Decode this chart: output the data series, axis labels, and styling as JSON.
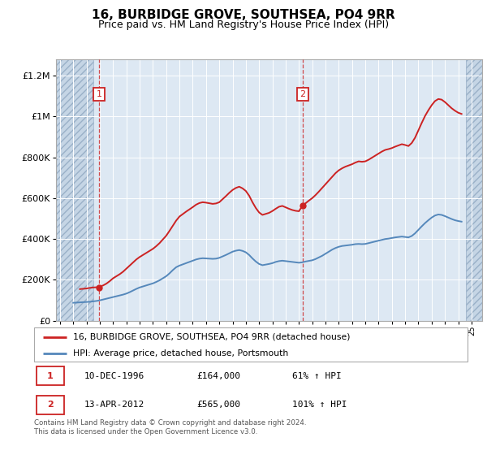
{
  "title": "16, BURBIDGE GROVE, SOUTHSEA, PO4 9RR",
  "subtitle": "Price paid vs. HM Land Registry's House Price Index (HPI)",
  "title_fontsize": 11,
  "subtitle_fontsize": 9,
  "ylabel_ticks": [
    "£0",
    "£200K",
    "£400K",
    "£600K",
    "£800K",
    "£1M",
    "£1.2M"
  ],
  "ytick_vals": [
    0,
    200000,
    400000,
    600000,
    800000,
    1000000,
    1200000
  ],
  "ylim": [
    0,
    1280000
  ],
  "xmin": 1993.7,
  "xmax": 2025.8,
  "hpi_color": "#5588bb",
  "price_color": "#cc2222",
  "annotation_box_color": "#cc2222",
  "bg_color": "#dde8f3",
  "hatch_color": "#c5d5e5",
  "grid_color": "#ffffff",
  "footnote": "Contains HM Land Registry data © Crown copyright and database right 2024.\nThis data is licensed under the Open Government Licence v3.0.",
  "sale1_price": 164000,
  "sale1_year": 1996.94,
  "sale2_price": 565000,
  "sale2_year": 2012.28,
  "legend_line1": "16, BURBIDGE GROVE, SOUTHSEA, PO4 9RR (detached house)",
  "legend_line2": "HPI: Average price, detached house, Portsmouth",
  "table_row1": [
    "1",
    "10-DEC-1996",
    "£164,000",
    "61% ↑ HPI"
  ],
  "table_row2": [
    "2",
    "13-APR-2012",
    "£565,000",
    "101% ↑ HPI"
  ],
  "hatch_left_end": 1996.5,
  "hatch_right_start": 2024.6,
  "hpi_data_years": [
    1995.0,
    1995.25,
    1995.5,
    1995.75,
    1996.0,
    1996.25,
    1996.5,
    1996.75,
    1997.0,
    1997.25,
    1997.5,
    1997.75,
    1998.0,
    1998.25,
    1998.5,
    1998.75,
    1999.0,
    1999.25,
    1999.5,
    1999.75,
    2000.0,
    2000.25,
    2000.5,
    2000.75,
    2001.0,
    2001.25,
    2001.5,
    2001.75,
    2002.0,
    2002.25,
    2002.5,
    2002.75,
    2003.0,
    2003.25,
    2003.5,
    2003.75,
    2004.0,
    2004.25,
    2004.5,
    2004.75,
    2005.0,
    2005.25,
    2005.5,
    2005.75,
    2006.0,
    2006.25,
    2006.5,
    2006.75,
    2007.0,
    2007.25,
    2007.5,
    2007.75,
    2008.0,
    2008.25,
    2008.5,
    2008.75,
    2009.0,
    2009.25,
    2009.5,
    2009.75,
    2010.0,
    2010.25,
    2010.5,
    2010.75,
    2011.0,
    2011.25,
    2011.5,
    2011.75,
    2012.0,
    2012.25,
    2012.5,
    2012.75,
    2013.0,
    2013.25,
    2013.5,
    2013.75,
    2014.0,
    2014.25,
    2014.5,
    2014.75,
    2015.0,
    2015.25,
    2015.5,
    2015.75,
    2016.0,
    2016.25,
    2016.5,
    2016.75,
    2017.0,
    2017.25,
    2017.5,
    2017.75,
    2018.0,
    2018.25,
    2018.5,
    2018.75,
    2019.0,
    2019.25,
    2019.5,
    2019.75,
    2020.0,
    2020.25,
    2020.5,
    2020.75,
    2021.0,
    2021.25,
    2021.5,
    2021.75,
    2022.0,
    2022.25,
    2022.5,
    2022.75,
    2023.0,
    2023.25,
    2023.5,
    2023.75,
    2024.0,
    2024.25
  ],
  "hpi_data_values": [
    88000,
    89000,
    90000,
    91000,
    92000,
    93000,
    95000,
    97000,
    100000,
    104000,
    108000,
    112000,
    116000,
    120000,
    124000,
    128000,
    133000,
    140000,
    148000,
    156000,
    163000,
    168000,
    173000,
    178000,
    183000,
    190000,
    198000,
    208000,
    218000,
    232000,
    248000,
    262000,
    270000,
    276000,
    282000,
    288000,
    294000,
    300000,
    304000,
    306000,
    305000,
    304000,
    303000,
    304000,
    308000,
    315000,
    322000,
    330000,
    338000,
    343000,
    346000,
    342000,
    335000,
    322000,
    305000,
    290000,
    278000,
    272000,
    275000,
    278000,
    282000,
    288000,
    292000,
    294000,
    292000,
    290000,
    288000,
    286000,
    284000,
    286000,
    290000,
    293000,
    296000,
    302000,
    310000,
    318000,
    328000,
    338000,
    348000,
    356000,
    362000,
    366000,
    368000,
    370000,
    372000,
    375000,
    376000,
    375000,
    376000,
    380000,
    384000,
    388000,
    392000,
    396000,
    400000,
    402000,
    405000,
    408000,
    410000,
    412000,
    410000,
    408000,
    415000,
    428000,
    445000,
    462000,
    478000,
    492000,
    505000,
    515000,
    520000,
    518000,
    512000,
    505000,
    498000,
    492000,
    488000,
    485000
  ],
  "price_data_years": [
    1995.5,
    1996.0,
    1996.25,
    1996.5,
    1996.75,
    1996.94,
    1997.0,
    1997.25,
    1997.5,
    1997.75,
    1998.0,
    1998.25,
    1998.5,
    1998.75,
    1999.0,
    1999.25,
    1999.5,
    1999.75,
    2000.0,
    2000.25,
    2000.5,
    2000.75,
    2001.0,
    2001.25,
    2001.5,
    2001.75,
    2002.0,
    2002.25,
    2002.5,
    2002.75,
    2003.0,
    2003.25,
    2003.5,
    2003.75,
    2004.0,
    2004.25,
    2004.5,
    2004.75,
    2005.0,
    2005.25,
    2005.5,
    2005.75,
    2006.0,
    2006.25,
    2006.5,
    2006.75,
    2007.0,
    2007.25,
    2007.5,
    2007.75,
    2008.0,
    2008.25,
    2008.5,
    2008.75,
    2009.0,
    2009.25,
    2009.5,
    2009.75,
    2010.0,
    2010.25,
    2010.5,
    2010.75,
    2011.0,
    2011.25,
    2011.5,
    2011.75,
    2012.0,
    2012.28,
    2012.5,
    2012.75,
    2013.0,
    2013.25,
    2013.5,
    2013.75,
    2014.0,
    2014.25,
    2014.5,
    2014.75,
    2015.0,
    2015.25,
    2015.5,
    2015.75,
    2016.0,
    2016.25,
    2016.5,
    2016.75,
    2017.0,
    2017.25,
    2017.5,
    2017.75,
    2018.0,
    2018.25,
    2018.5,
    2018.75,
    2019.0,
    2019.25,
    2019.5,
    2019.75,
    2020.0,
    2020.25,
    2020.5,
    2020.75,
    2021.0,
    2021.25,
    2021.5,
    2021.75,
    2022.0,
    2022.25,
    2022.5,
    2022.75,
    2023.0,
    2023.25,
    2023.5,
    2023.75,
    2024.0,
    2024.25
  ],
  "price_data_values": [
    155000,
    158000,
    161000,
    163000,
    164000,
    164000,
    167000,
    173000,
    182000,
    194000,
    208000,
    218000,
    228000,
    240000,
    255000,
    270000,
    285000,
    300000,
    312000,
    322000,
    332000,
    342000,
    352000,
    365000,
    380000,
    398000,
    416000,
    440000,
    465000,
    490000,
    510000,
    522000,
    534000,
    545000,
    556000,
    568000,
    576000,
    580000,
    578000,
    575000,
    572000,
    574000,
    580000,
    595000,
    610000,
    626000,
    640000,
    650000,
    656000,
    648000,
    635000,
    612000,
    580000,
    552000,
    530000,
    518000,
    523000,
    528000,
    537000,
    548000,
    558000,
    562000,
    555000,
    548000,
    542000,
    538000,
    536000,
    565000,
    575000,
    588000,
    600000,
    615000,
    632000,
    650000,
    668000,
    686000,
    704000,
    722000,
    736000,
    746000,
    754000,
    760000,
    766000,
    774000,
    780000,
    778000,
    780000,
    788000,
    798000,
    808000,
    818000,
    828000,
    836000,
    840000,
    845000,
    852000,
    858000,
    864000,
    860000,
    855000,
    870000,
    896000,
    932000,
    968000,
    1002000,
    1030000,
    1055000,
    1075000,
    1085000,
    1082000,
    1070000,
    1055000,
    1040000,
    1028000,
    1018000,
    1012000
  ]
}
